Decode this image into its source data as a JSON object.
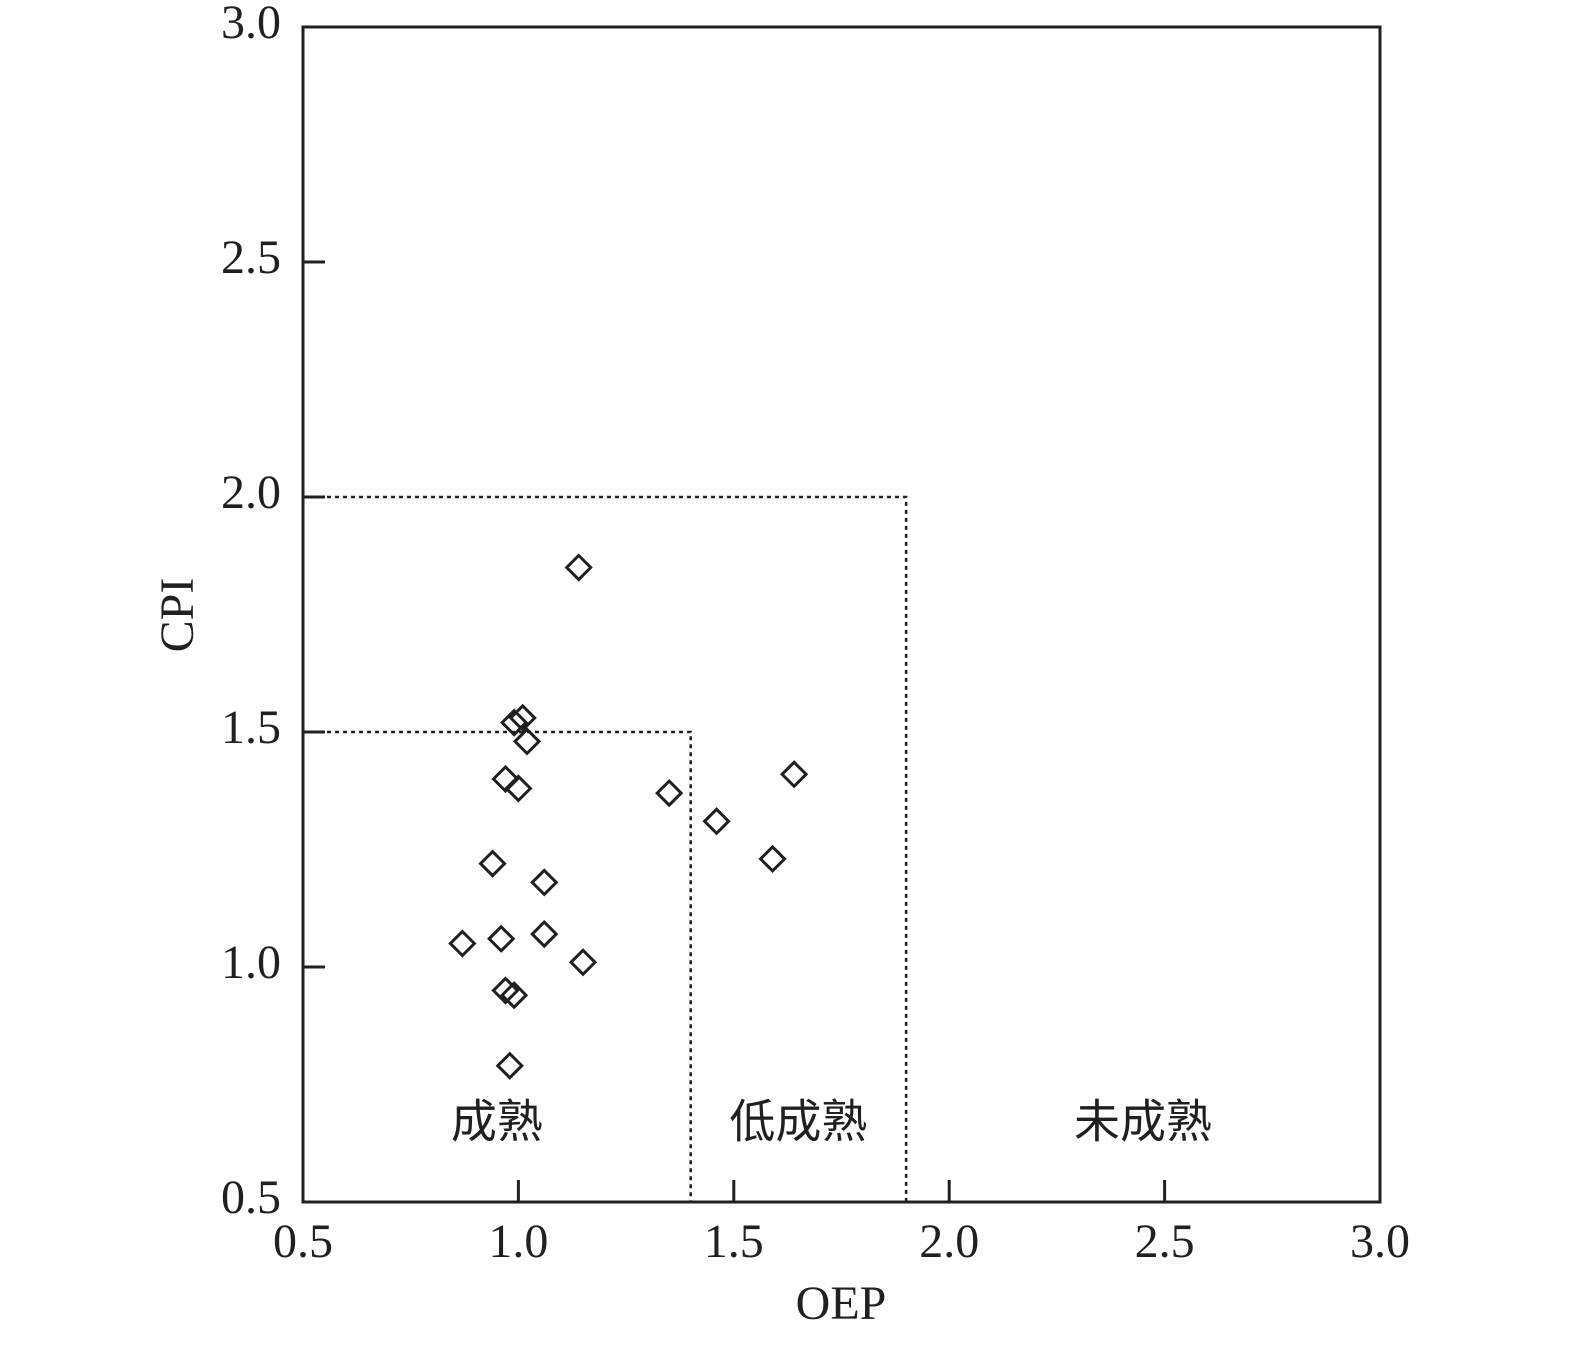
{
  "chart_data": {
    "type": "scatter",
    "x_label": "OEP",
    "y_label": "CPI",
    "x": [
      1.14,
      1.01,
      0.99,
      1.02,
      0.97,
      1.0,
      1.35,
      1.64,
      1.46,
      1.59,
      0.94,
      1.06,
      0.87,
      0.96,
      1.06,
      1.15,
      0.97,
      0.99,
      0.98
    ],
    "values": [
      1.85,
      1.53,
      1.52,
      1.48,
      1.4,
      1.38,
      1.37,
      1.41,
      1.31,
      1.23,
      1.22,
      1.18,
      1.05,
      1.06,
      1.07,
      1.01,
      0.95,
      0.94,
      0.79
    ],
    "color": "#231f20",
    "xlim": [
      0.5,
      3.0
    ],
    "ylim": [
      0.5,
      3.0
    ],
    "xticks": [
      0.5,
      {
        "value": 1.0,
        "label": "1.0"
      },
      1.5,
      {
        "value": 2.0,
        "label": "2.0"
      },
      2.5,
      {
        "value": 3.0,
        "label": "3.0"
      }
    ],
    "yticks": [
      0.5,
      {
        "value": 1.0,
        "label": "1.0"
      },
      1.5,
      {
        "value": 2.0,
        "label": "2.0"
      },
      2.5,
      {
        "value": 3.0,
        "label": "3.0"
      }
    ],
    "boundaries": [
      {
        "x": 1.4,
        "y": 1.5
      },
      {
        "x": 1.9,
        "y": 2.0
      }
    ],
    "region_labels": [
      "成熟",
      "低成熟",
      "未成熟"
    ]
  }
}
